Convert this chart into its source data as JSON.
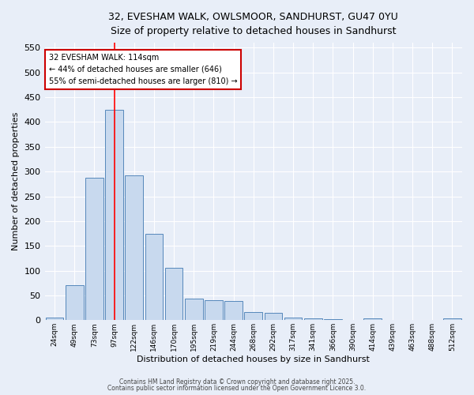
{
  "title_line1": "32, EVESHAM WALK, OWLSMOOR, SANDHURST, GU47 0YU",
  "title_line2": "Size of property relative to detached houses in Sandhurst",
  "xlabel": "Distribution of detached houses by size in Sandhurst",
  "ylabel": "Number of detached properties",
  "categories": [
    "24sqm",
    "49sqm",
    "73sqm",
    "97sqm",
    "122sqm",
    "146sqm",
    "170sqm",
    "195sqm",
    "219sqm",
    "244sqm",
    "268sqm",
    "292sqm",
    "317sqm",
    "341sqm",
    "366sqm",
    "390sqm",
    "414sqm",
    "439sqm",
    "463sqm",
    "488sqm",
    "512sqm"
  ],
  "values": [
    5,
    70,
    288,
    425,
    292,
    175,
    105,
    43,
    40,
    38,
    16,
    15,
    6,
    3,
    2,
    1,
    3,
    1,
    1,
    1,
    3
  ],
  "bar_color": "#c8d9ee",
  "bar_edge_color": "#5588bb",
  "red_line_x": 3.0,
  "annotation_text": "32 EVESHAM WALK: 114sqm\n← 44% of detached houses are smaller (646)\n55% of semi-detached houses are larger (810) →",
  "annotation_box_color": "#ffffff",
  "annotation_box_edge_color": "#cc0000",
  "ylim": [
    0,
    560
  ],
  "yticks": [
    0,
    50,
    100,
    150,
    200,
    250,
    300,
    350,
    400,
    450,
    500,
    550
  ],
  "background_color": "#e8eef8",
  "grid_color": "#ffffff",
  "footer_line1": "Contains HM Land Registry data © Crown copyright and database right 2025.",
  "footer_line2": "Contains public sector information licensed under the Open Government Licence 3.0."
}
